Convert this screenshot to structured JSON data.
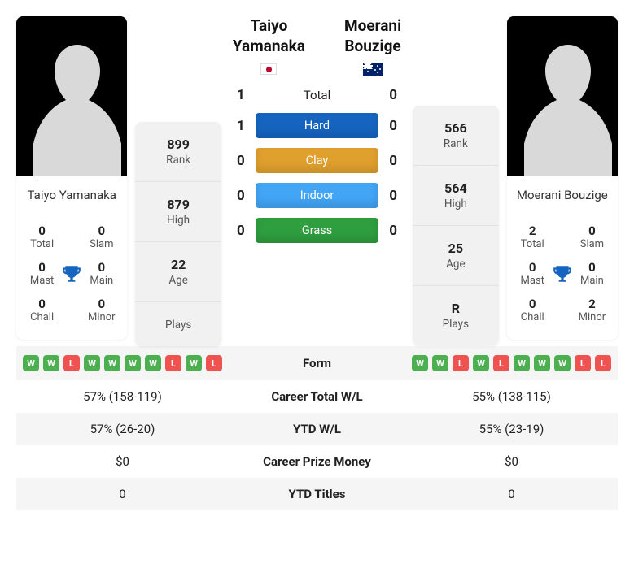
{
  "labels": {
    "total": "Total",
    "slam": "Slam",
    "mast": "Mast",
    "main": "Main",
    "chall": "Chall",
    "minor": "Minor",
    "rank": "Rank",
    "high": "High",
    "age": "Age",
    "plays": "Plays",
    "h2h_total": "Total",
    "form": "Form",
    "career_wl": "Career Total W/L",
    "ytd_wl": "YTD W/L",
    "prize": "Career Prize Money",
    "ytd_titles": "YTD Titles"
  },
  "surfaces": {
    "hard": {
      "label": "Hard",
      "color": "#1565c0"
    },
    "clay": {
      "label": "Clay",
      "color": "#e0a02e"
    },
    "indoor": {
      "label": "Indoor",
      "color": "#42a5f5"
    },
    "grass": {
      "label": "Grass",
      "color": "#2e9e3f"
    }
  },
  "h2h": {
    "total": {
      "p1": "1",
      "p2": "0"
    },
    "hard": {
      "p1": "1",
      "p2": "0"
    },
    "clay": {
      "p1": "0",
      "p2": "0"
    },
    "indoor": {
      "p1": "0",
      "p2": "0"
    },
    "grass": {
      "p1": "0",
      "p2": "0"
    }
  },
  "p1": {
    "name_line1": "Taiyo",
    "name_line2": "Yamanaka",
    "name_full": "Taiyo Yamanaka",
    "flag": "jp",
    "rank": "899",
    "high": "879",
    "age": "22",
    "plays": "",
    "titles": {
      "total": "0",
      "slam": "0",
      "mast": "0",
      "main": "0",
      "chall": "0",
      "minor": "0"
    },
    "form": [
      "W",
      "W",
      "L",
      "W",
      "W",
      "W",
      "W",
      "L",
      "W",
      "L"
    ],
    "career_wl": "57% (158-119)",
    "ytd_wl": "57% (26-20)",
    "prize": "$0",
    "ytd_titles": "0"
  },
  "p2": {
    "name_line1": "Moerani",
    "name_line2": "Bouzige",
    "name_full": "Moerani Bouzige",
    "flag": "au",
    "rank": "566",
    "high": "564",
    "age": "25",
    "plays": "R",
    "titles": {
      "total": "2",
      "slam": "0",
      "mast": "0",
      "main": "0",
      "chall": "0",
      "minor": "2"
    },
    "form": [
      "W",
      "W",
      "L",
      "W",
      "L",
      "W",
      "W",
      "W",
      "L",
      "L"
    ],
    "career_wl": "55% (138-115)",
    "ytd_wl": "55% (23-19)",
    "prize": "$0",
    "ytd_titles": "0"
  },
  "colors": {
    "trophy": "#1565c0",
    "silhouette": "#d9d9d9",
    "win": "#4caf50",
    "loss": "#ef5350"
  }
}
